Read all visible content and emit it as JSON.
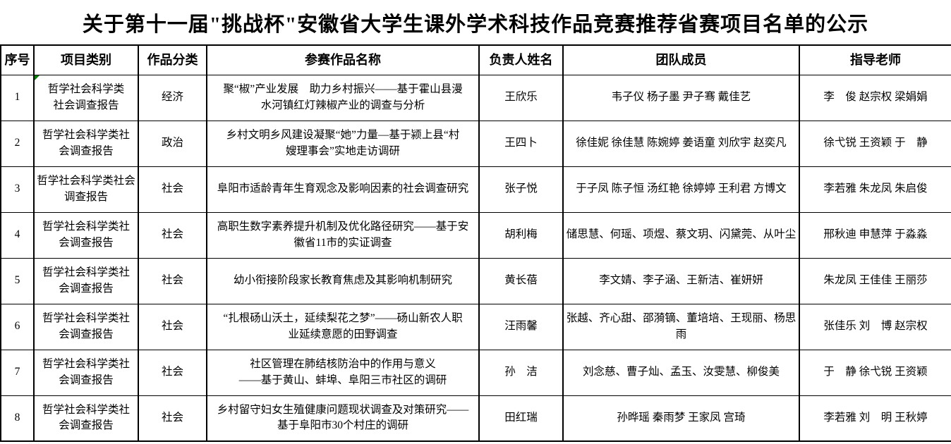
{
  "title": "关于第十一届\"挑战杯\"安徽省大学生课外学术科技作品竞赛推荐省赛项目名单的公示",
  "table": {
    "headers": {
      "no": "序号",
      "category": "项目类别",
      "classification": "作品分类",
      "name": "参赛作品名称",
      "leader": "负责人姓名",
      "members": "团队成员",
      "teachers": "指导老师"
    },
    "marker_color": "#008000",
    "rows": [
      {
        "no": "1",
        "category": "哲学社会科学类\n社会调查报告",
        "classification": "经济",
        "name": "聚“椒”产业发展　助力乡村振兴——基于霍山县漫\n水河镇红灯辣椒产业的调查与分析",
        "leader": "王欣乐",
        "members": "韦子仪 杨子墨 尹子骞 戴佳艺",
        "teachers": "李　俊 赵宗权 梁娟娟"
      },
      {
        "no": "2",
        "category": "哲学社会科学类社\n会调查报告",
        "classification": "政治",
        "name": "乡村文明乡风建设凝聚“她”力量—基于颍上县“村\n嫂理事会”实地走访调研",
        "leader": "王四卜",
        "members": "徐佳妮 徐佳慧 陈婉婷 姜语童 刘欣宇 赵奕凡",
        "teachers": "徐弋锐 王资颖 于　静"
      },
      {
        "no": "3",
        "category": "哲学社会科学类社会\n调查报告",
        "classification": "社会",
        "name": "阜阳市适龄青年生育观念及影响因素的社会调查研究",
        "leader": "张子悦",
        "members": "于子凤 陈子恒 汤红艳 徐婷婷 王利君 方博文",
        "teachers": "李若雅 朱龙凤 朱启俊"
      },
      {
        "no": "4",
        "category": "哲学社会科学类社\n会调查报告",
        "classification": "社会",
        "name": "高职生数字素养提升机制及优化路径研究——基于安\n徽省11市的实证调查",
        "leader": "胡利梅",
        "members": "储思慧、何瑶、项煜、蔡文玥、闪黛莞、从叶尘",
        "teachers": "邢秋迪 申慧萍 于淼淼"
      },
      {
        "no": "5",
        "category": "哲学社会科学类社\n会调查报告",
        "classification": "社会",
        "name": "幼小衔接阶段家长教育焦虑及其影响机制研究",
        "leader": "黄长蓓",
        "members": "李文婧、李子涵、王新洁、崔妍妍",
        "teachers": "朱龙凤 王佳佳 王丽莎"
      },
      {
        "no": "6",
        "category": "哲学社会科学类社\n会调查报告",
        "classification": "社会",
        "name": "“扎根砀山沃土，延续梨花之梦”——砀山新农人职\n业延续意愿的田野调查",
        "leader": "汪雨馨",
        "members": "张越、齐心甜、邵漪镝、董培培、王现丽、杨思雨",
        "teachers": "张佳乐 刘　博 赵宗权"
      },
      {
        "no": "7",
        "category": "哲学社会科学类社\n会调查报告",
        "classification": "社会",
        "name": "社区管理在肺结核防治中的作用与意义\n——基于黄山、蚌埠、阜阳三市社区的调研",
        "leader": "孙　洁",
        "members": "刘念慈、曹子灿、孟玉、汝雯慧、柳俊美",
        "teachers": "于　静 徐弋锐 王资颖"
      },
      {
        "no": "8",
        "category": "哲学社会科学类社\n会调查报告",
        "classification": "社会",
        "name": "乡村留守妇女生殖健康问题现状调查及对策研究——\n基于阜阳市30个村庄的调研",
        "leader": "田红瑞",
        "members": "孙晔瑶 秦雨梦 王家凤 宫琦",
        "teachers": "李若雅 刘　明 王秋婷"
      }
    ]
  }
}
